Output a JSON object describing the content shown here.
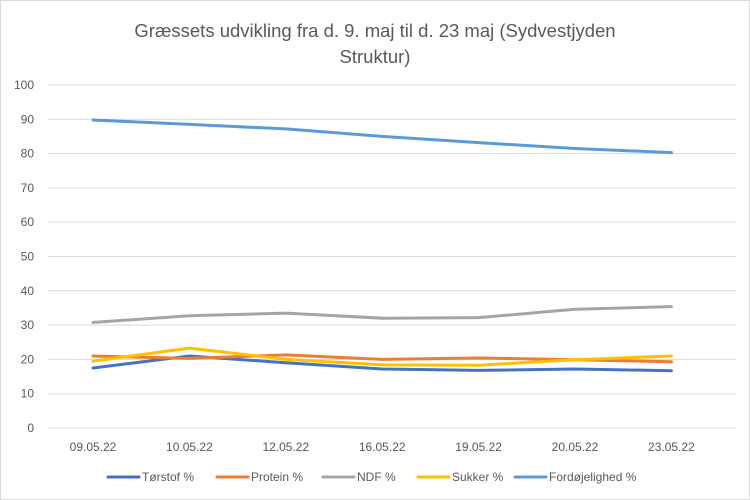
{
  "chart_data": {
    "type": "line",
    "title_lines": [
      "Græssets udvikling fra d. 9. maj til d. 23 maj (Sydvestjyden",
      "Struktur)"
    ],
    "categories": [
      "09.05.22",
      "10.05.22",
      "12.05.22",
      "16.05.22",
      "19.05.22",
      "20.05.22",
      "23.05.22"
    ],
    "ylim": [
      0,
      100
    ],
    "yticks": [
      0,
      10,
      20,
      30,
      40,
      50,
      60,
      70,
      80,
      90,
      100
    ],
    "grid": true,
    "legend_position": "bottom",
    "series": [
      {
        "name": "Tørstof %",
        "color": "#4472C4",
        "values": [
          17.5,
          21.0,
          19.0,
          17.2,
          16.8,
          17.2,
          16.7
        ]
      },
      {
        "name": "Protein %",
        "color": "#ED7D31",
        "values": [
          21.0,
          20.3,
          21.3,
          20.0,
          20.4,
          19.9,
          19.3
        ]
      },
      {
        "name": "NDF %",
        "color": "#A5A5A5",
        "values": [
          30.8,
          32.7,
          33.5,
          32.0,
          32.2,
          34.6,
          35.4
        ]
      },
      {
        "name": "Sukker %",
        "color": "#FFC000",
        "values": [
          19.5,
          23.3,
          20.0,
          18.4,
          18.3,
          19.9,
          21.0
        ]
      },
      {
        "name": "Fordøjelighed %",
        "color": "#5B9BD5",
        "values": [
          89.8,
          88.5,
          87.2,
          85.0,
          83.2,
          81.5,
          80.3
        ]
      }
    ]
  }
}
